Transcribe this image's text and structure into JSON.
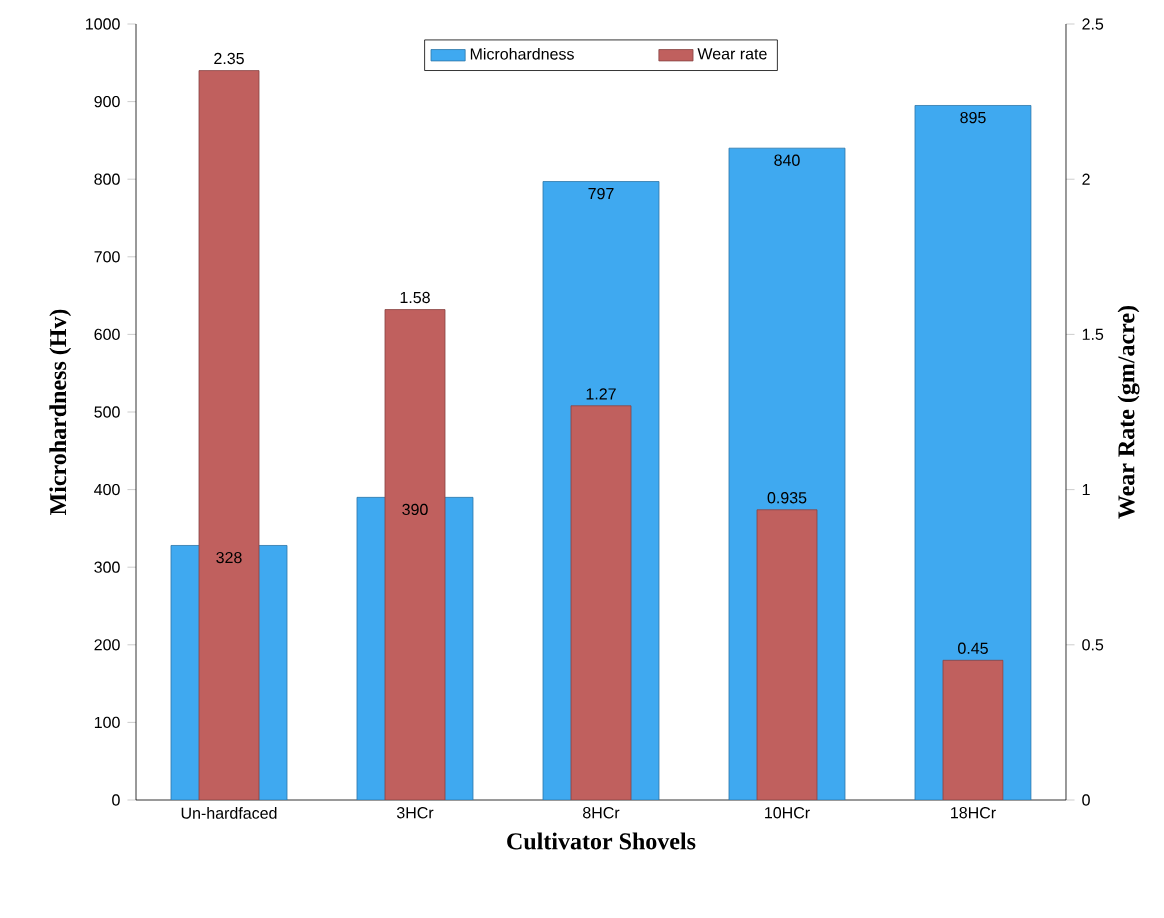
{
  "chart_data": {
    "type": "bar",
    "xlabel": "Cultivator Shovels",
    "ylabel": "Microhardness (Hv)",
    "y2label": "Wear Rate (gm/acre)",
    "categories": [
      "Un-hardfaced",
      "3HCr",
      "8HCr",
      "10HCr",
      "18HCr"
    ],
    "series": [
      {
        "name": "Microhardness",
        "color": "#3fa9f0",
        "values": [
          328,
          390,
          797,
          840,
          895
        ]
      },
      {
        "name": "Wear rate",
        "color": "#c0605e",
        "values": [
          2.35,
          1.58,
          1.27,
          0.935,
          0.45
        ],
        "axis": "y2"
      }
    ],
    "ylim": [
      0,
      1000
    ],
    "yticks": [
      0,
      100,
      200,
      300,
      400,
      500,
      600,
      700,
      800,
      900,
      1000
    ],
    "y2lim": [
      0,
      2.5
    ],
    "y2ticks": [
      0,
      0.5,
      1,
      1.5,
      2,
      2.5
    ],
    "legend": "top",
    "data_labels": true
  }
}
